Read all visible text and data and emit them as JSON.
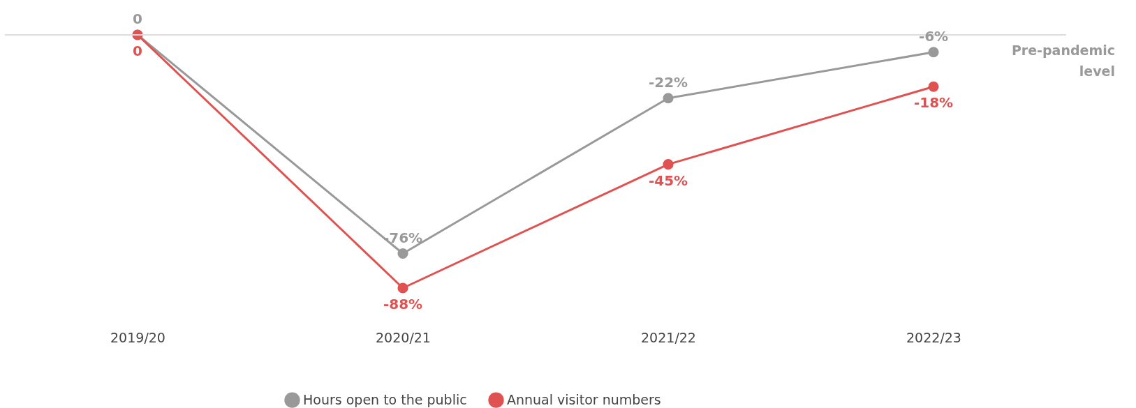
{
  "chart_data": {
    "type": "line",
    "categories": [
      "2019/20",
      "2020/21",
      "2021/22",
      "2022/23"
    ],
    "series": [
      {
        "name": "Hours open to the public",
        "color": "#999999",
        "values": [
          0,
          -76,
          -22,
          -6
        ],
        "value_labels": [
          "0",
          "-76%",
          "-22%",
          "-6%"
        ]
      },
      {
        "name": "Annual visitor numbers",
        "color": "#e05252",
        "values": [
          0,
          -88,
          -45,
          -18
        ],
        "value_labels": [
          "0",
          "-88%",
          "-45%",
          "-18%"
        ]
      }
    ],
    "tick_labels": "x",
    "grid": false,
    "legend": "bottom",
    "marker": "circle",
    "line_style": "solid",
    "ref_lines": [
      {
        "axis": "y",
        "value": 0,
        "label": "Pre-pandemic level",
        "color": "#dddddd"
      }
    ]
  }
}
